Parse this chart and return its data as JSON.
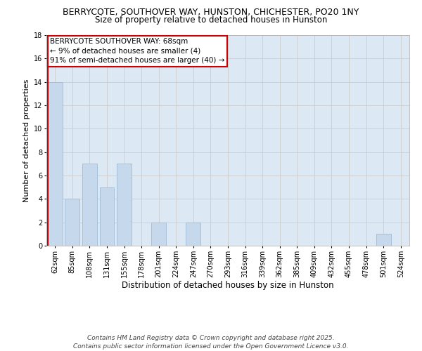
{
  "title1": "BERRYCOTE, SOUTHOVER WAY, HUNSTON, CHICHESTER, PO20 1NY",
  "title2": "Size of property relative to detached houses in Hunston",
  "xlabel": "Distribution of detached houses by size in Hunston",
  "ylabel": "Number of detached properties",
  "categories": [
    "62sqm",
    "85sqm",
    "108sqm",
    "131sqm",
    "155sqm",
    "178sqm",
    "201sqm",
    "224sqm",
    "247sqm",
    "270sqm",
    "293sqm",
    "316sqm",
    "339sqm",
    "362sqm",
    "385sqm",
    "409sqm",
    "432sqm",
    "455sqm",
    "478sqm",
    "501sqm",
    "524sqm"
  ],
  "values": [
    14,
    4,
    7,
    5,
    7,
    0,
    2,
    0,
    2,
    0,
    0,
    0,
    0,
    0,
    0,
    0,
    0,
    0,
    0,
    1,
    0
  ],
  "bar_color": "#c5d8ec",
  "bar_edge_color": "#a0bcd8",
  "highlight_color": "#cc0000",
  "annotation_title": "BERRYCOTE SOUTHOVER WAY: 68sqm",
  "annotation_line1": "← 9% of detached houses are smaller (4)",
  "annotation_line2": "91% of semi-detached houses are larger (40) →",
  "annotation_box_color": "#ffffff",
  "annotation_box_edge": "#cc0000",
  "ylim": [
    0,
    18
  ],
  "yticks": [
    0,
    2,
    4,
    6,
    8,
    10,
    12,
    14,
    16,
    18
  ],
  "grid_color": "#cccccc",
  "background_color": "#dde8f5",
  "footer1": "Contains HM Land Registry data © Crown copyright and database right 2025.",
  "footer2": "Contains public sector information licensed under the Open Government Licence v3.0.",
  "title1_fontsize": 9,
  "title2_fontsize": 8.5,
  "xlabel_fontsize": 8.5,
  "ylabel_fontsize": 8,
  "tick_fontsize": 7,
  "annotation_fontsize": 7.5,
  "footer_fontsize": 6.5
}
